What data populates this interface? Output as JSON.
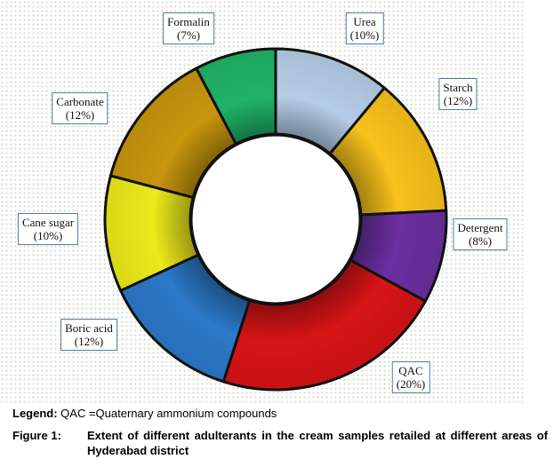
{
  "chart_data": {
    "type": "pie",
    "variant": "donut",
    "slices": [
      {
        "label": "Urea",
        "value": 10,
        "display": "(10%)",
        "color": "#b4cde6"
      },
      {
        "label": "Starch",
        "value": 12,
        "display": "(12%)",
        "color": "#f8c21a"
      },
      {
        "label": "Detergent",
        "value": 8,
        "display": "(8%)",
        "color": "#6a2fa0"
      },
      {
        "label": "QAC",
        "value": 20,
        "display": "(20%)",
        "color": "#d81416"
      },
      {
        "label": "Boric acid",
        "value": 12,
        "display": "(12%)",
        "color": "#2b79c9"
      },
      {
        "label": "Cane sugar",
        "value": 10,
        "display": "(10%)",
        "color": "#ecea1a"
      },
      {
        "label": "Carbonate",
        "value": 12,
        "display": "(12%)",
        "color": "#c8960c"
      },
      {
        "label": "Formalin",
        "value": 7,
        "display": "(7%)",
        "color": "#1fb366"
      }
    ],
    "slice_order": "clockwise from top"
  },
  "caption": {
    "legend_label": "Legend:",
    "legend_text": " QAC =Quaternary ammonium compounds",
    "figure_label": "Figure 1:",
    "figure_text": "Extent of different adulterants in the cream samples retailed at different areas of Hyderabad district"
  }
}
